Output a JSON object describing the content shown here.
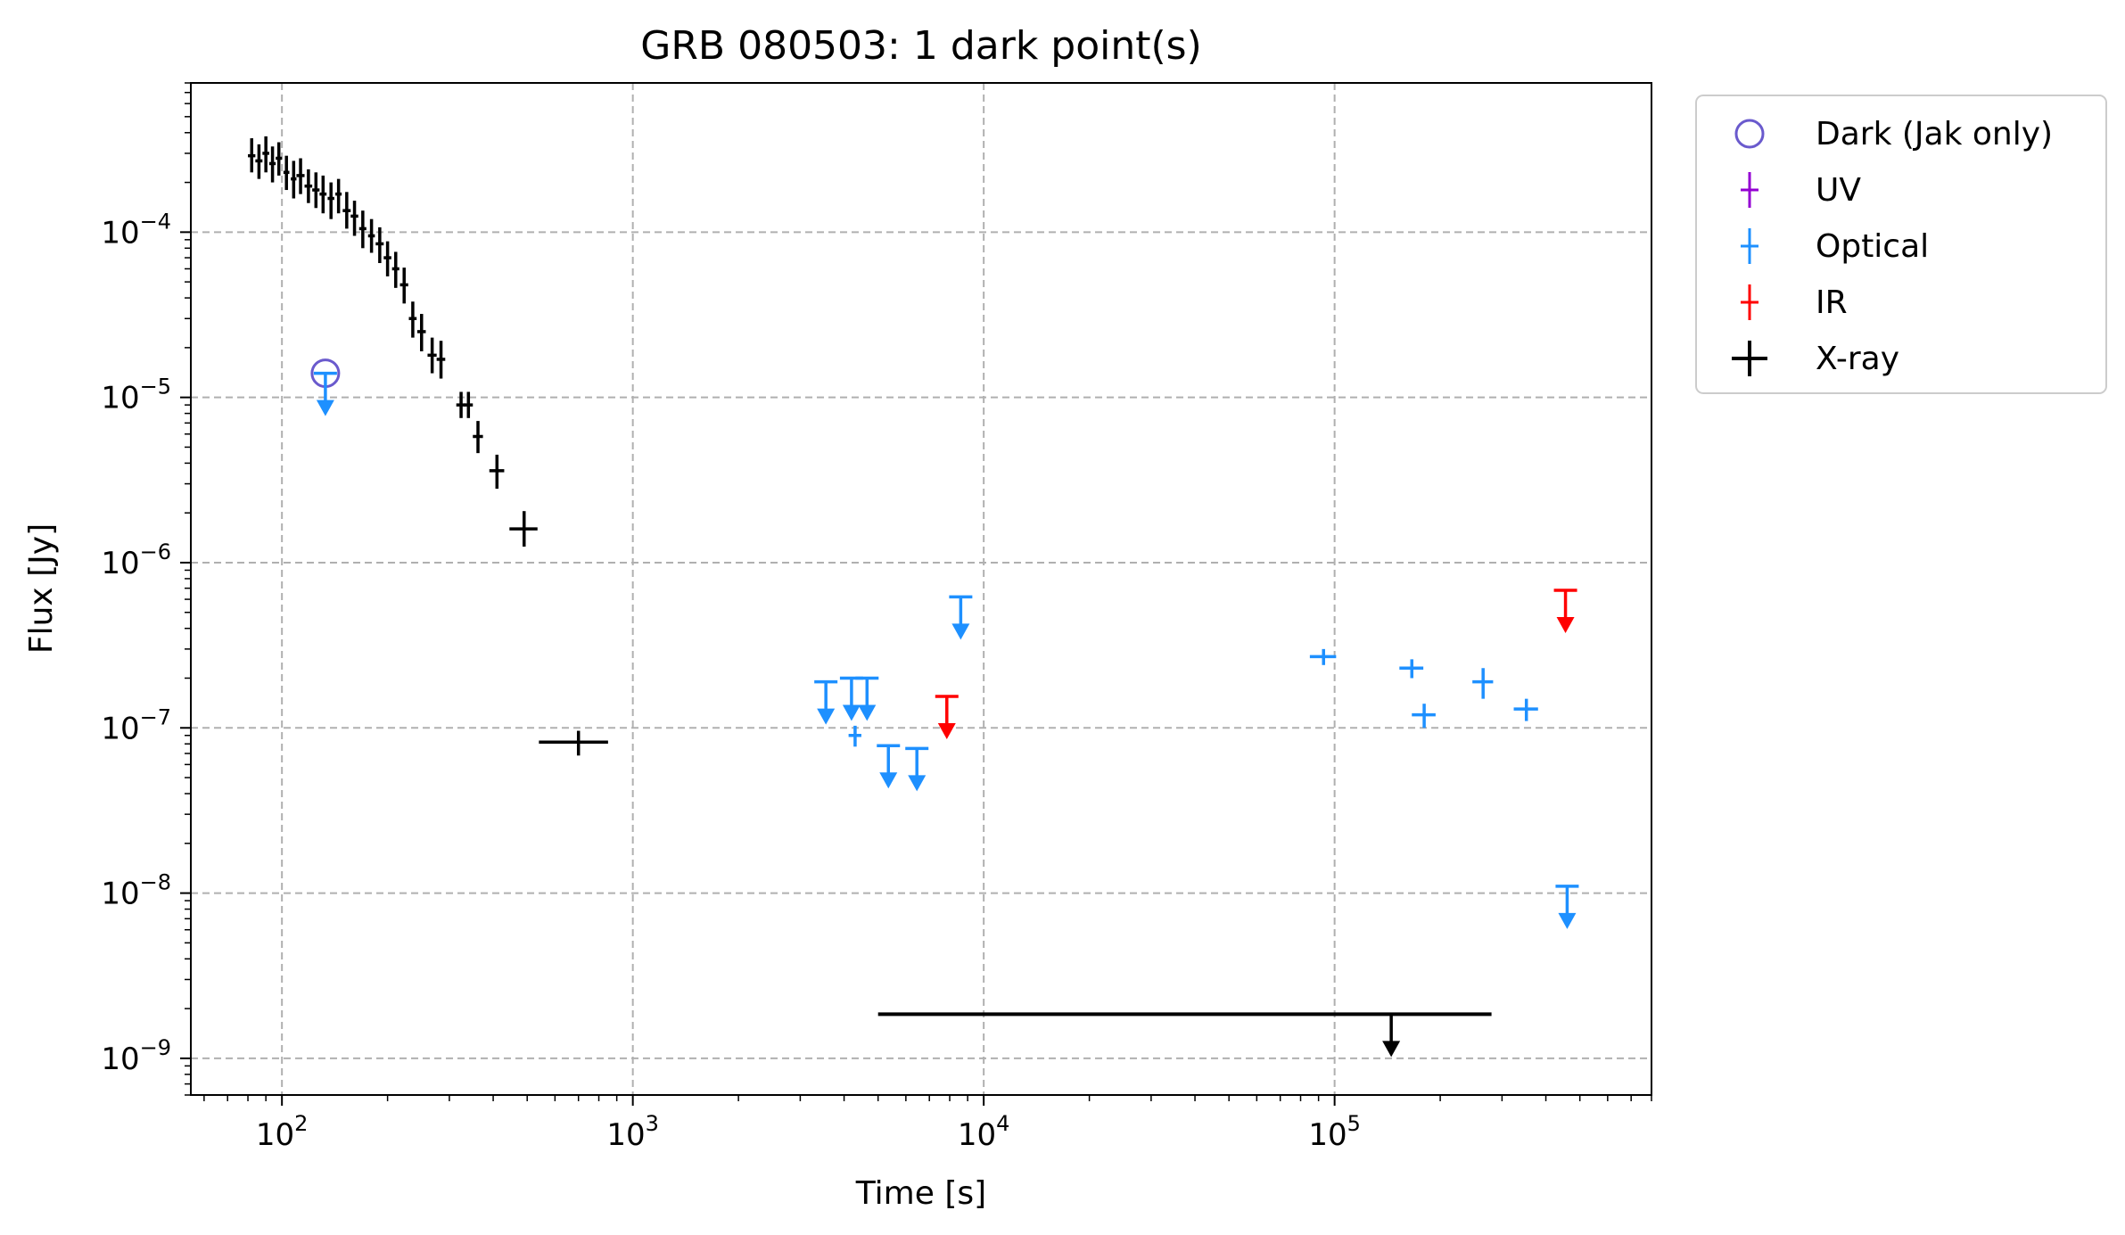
{
  "chart_data": {
    "type": "scatter",
    "title": "GRB 080503: 1 dark point(s)",
    "xlabel": "Time [s]",
    "ylabel": "Flux [Jy]",
    "xscale": "log",
    "yscale": "log",
    "xlim": [
      55,
      800000
    ],
    "ylim": [
      6e-10,
      0.0008
    ],
    "grid": true,
    "legend_position": "outside-upper-right",
    "x_ticks": [
      {
        "value": 100,
        "base": "10",
        "exp": "2"
      },
      {
        "value": 1000,
        "base": "10",
        "exp": "3"
      },
      {
        "value": 10000,
        "base": "10",
        "exp": "4"
      },
      {
        "value": 100000,
        "base": "10",
        "exp": "5"
      }
    ],
    "y_ticks": [
      {
        "value": 0.0001,
        "base": "10",
        "exp": "−4"
      },
      {
        "value": 1e-05,
        "base": "10",
        "exp": "−5"
      },
      {
        "value": 1e-06,
        "base": "10",
        "exp": "−6"
      },
      {
        "value": 1e-07,
        "base": "10",
        "exp": "−7"
      },
      {
        "value": 1e-08,
        "base": "10",
        "exp": "−8"
      },
      {
        "value": 1e-09,
        "base": "10",
        "exp": "−9"
      }
    ],
    "series": [
      {
        "name": "Dark (Jak only)",
        "color": "#6a5acd",
        "marker": "open-circle",
        "points": [
          {
            "x": 133,
            "y": 1.4e-05
          }
        ]
      },
      {
        "name": "UV",
        "color": "#9400d3",
        "marker": "cross",
        "points": []
      },
      {
        "name": "Optical",
        "color": "#1e90ff",
        "marker": "cross",
        "points": [
          {
            "x": 133,
            "y": 1.4e-05,
            "upper_limit": true
          },
          {
            "x": 3550,
            "y": 1.9e-07,
            "upper_limit": true
          },
          {
            "x": 4200,
            "y": 2e-07,
            "upper_limit": true
          },
          {
            "x": 4650,
            "y": 2e-07,
            "upper_limit": true
          },
          {
            "x": 5350,
            "y": 7.8e-08,
            "upper_limit": true
          },
          {
            "x": 6450,
            "y": 7.5e-08,
            "upper_limit": true
          },
          {
            "x": 8600,
            "y": 6.2e-07,
            "upper_limit": true
          },
          {
            "x": 460000,
            "y": 1.1e-08,
            "upper_limit": true
          },
          {
            "x": 4300,
            "y": 9e-08,
            "xerr": [
              180,
              180
            ],
            "yerr": [
              1.3e-08,
              1.3e-08
            ]
          },
          {
            "x": 93000,
            "y": 2.7e-07,
            "xerr": [
              8000,
              8000
            ],
            "yerr": [
              3e-08,
              3e-08
            ]
          },
          {
            "x": 166000,
            "y": 2.3e-07,
            "xerr": [
              13000,
              13000
            ],
            "yerr": [
              3e-08,
              3e-08
            ]
          },
          {
            "x": 180000,
            "y": 1.2e-07,
            "xerr": [
              14000,
              14000
            ],
            "yerr": [
              2e-08,
              2e-08
            ]
          },
          {
            "x": 265000,
            "y": 1.9e-07,
            "xerr": [
              18000,
              18000
            ],
            "yerr": [
              4e-08,
              4e-08
            ]
          },
          {
            "x": 352000,
            "y": 1.3e-07,
            "xerr": [
              28000,
              28000
            ],
            "yerr": [
              2e-08,
              2e-08
            ]
          }
        ]
      },
      {
        "name": "IR",
        "color": "#ff0000",
        "marker": "cross",
        "points": [
          {
            "x": 7850,
            "y": 1.55e-07,
            "upper_limit": true
          },
          {
            "x": 455000,
            "y": 6.8e-07,
            "upper_limit": true
          }
        ]
      },
      {
        "name": "X-ray",
        "color": "#000000",
        "marker": "cross",
        "points": [
          {
            "x": 82,
            "y": 0.00029,
            "xerr": [
              2,
              2
            ],
            "yerr": [
              6e-05,
              8e-05
            ]
          },
          {
            "x": 86,
            "y": 0.00027,
            "xerr": [
              2,
              2
            ],
            "yerr": [
              6e-05,
              7e-05
            ]
          },
          {
            "x": 90,
            "y": 0.0003,
            "xerr": [
              2,
              2
            ],
            "yerr": [
              7e-05,
              8e-05
            ]
          },
          {
            "x": 94,
            "y": 0.00026,
            "xerr": [
              2,
              2
            ],
            "yerr": [
              6e-05,
              7e-05
            ]
          },
          {
            "x": 98,
            "y": 0.00028,
            "xerr": [
              2,
              2
            ],
            "yerr": [
              6e-05,
              7e-05
            ]
          },
          {
            "x": 103,
            "y": 0.00023,
            "xerr": [
              2,
              2
            ],
            "yerr": [
              5e-05,
              6e-05
            ]
          },
          {
            "x": 108,
            "y": 0.00021,
            "xerr": [
              2,
              2
            ],
            "yerr": [
              5e-05,
              6e-05
            ]
          },
          {
            "x": 113,
            "y": 0.00022,
            "xerr": [
              3,
              3
            ],
            "yerr": [
              5e-05,
              6e-05
            ]
          },
          {
            "x": 119,
            "y": 0.00019,
            "xerr": [
              3,
              3
            ],
            "yerr": [
              4e-05,
              5e-05
            ]
          },
          {
            "x": 125,
            "y": 0.00018,
            "xerr": [
              3,
              3
            ],
            "yerr": [
              4e-05,
              5e-05
            ]
          },
          {
            "x": 131,
            "y": 0.00017,
            "xerr": [
              3,
              3
            ],
            "yerr": [
              4e-05,
              5e-05
            ]
          },
          {
            "x": 138,
            "y": 0.00016,
            "xerr": [
              3,
              3
            ],
            "yerr": [
              4e-05,
              4e-05
            ]
          },
          {
            "x": 145,
            "y": 0.00017,
            "xerr": [
              3,
              3
            ],
            "yerr": [
              4e-05,
              4e-05
            ]
          },
          {
            "x": 153,
            "y": 0.000135,
            "xerr": [
              4,
              4
            ],
            "yerr": [
              3e-05,
              4e-05
            ]
          },
          {
            "x": 161,
            "y": 0.000125,
            "xerr": [
              4,
              4
            ],
            "yerr": [
              3e-05,
              3e-05
            ]
          },
          {
            "x": 170,
            "y": 0.000105,
            "xerr": [
              4,
              4
            ],
            "yerr": [
              2.5e-05,
              3e-05
            ]
          },
          {
            "x": 180,
            "y": 9.5e-05,
            "xerr": [
              4,
              4
            ],
            "yerr": [
              2e-05,
              2.5e-05
            ]
          },
          {
            "x": 190,
            "y": 8.5e-05,
            "xerr": [
              5,
              5
            ],
            "yerr": [
              2e-05,
              2.2e-05
            ]
          },
          {
            "x": 200,
            "y": 7e-05,
            "xerr": [
              5,
              5
            ],
            "yerr": [
              1.6e-05,
              1.8e-05
            ]
          },
          {
            "x": 211,
            "y": 6e-05,
            "xerr": [
              5,
              5
            ],
            "yerr": [
              1.4e-05,
              1.6e-05
            ]
          },
          {
            "x": 223,
            "y": 4.8e-05,
            "xerr": [
              6,
              6
            ],
            "yerr": [
              1.1e-05,
              1.3e-05
            ]
          },
          {
            "x": 236,
            "y": 3e-05,
            "xerr": [
              6,
              6
            ],
            "yerr": [
              7e-06,
              8e-06
            ]
          },
          {
            "x": 250,
            "y": 2.5e-05,
            "xerr": [
              7,
              7
            ],
            "yerr": [
              6e-06,
              7e-06
            ]
          },
          {
            "x": 268,
            "y": 1.8e-05,
            "xerr": [
              8,
              8
            ],
            "yerr": [
              4e-06,
              5e-06
            ]
          },
          {
            "x": 284,
            "y": 1.7e-05,
            "xerr": [
              8,
              8
            ],
            "yerr": [
              4e-06,
              5e-06
            ]
          },
          {
            "x": 324,
            "y": 9e-06,
            "xerr": [
              10,
              10
            ],
            "yerr": [
              1.5e-06,
              1.8e-06
            ]
          },
          {
            "x": 340,
            "y": 9e-06,
            "xerr": [
              10,
              10
            ],
            "yerr": [
              1.5e-06,
              1.8e-06
            ]
          },
          {
            "x": 362,
            "y": 5.8e-06,
            "xerr": [
              12,
              12
            ],
            "yerr": [
              1.2e-06,
              1.4e-06
            ]
          },
          {
            "x": 410,
            "y": 3.6e-06,
            "xerr": [
              20,
              20
            ],
            "yerr": [
              8e-07,
              9e-07
            ]
          },
          {
            "x": 490,
            "y": 1.6e-06,
            "xerr": [
              45,
              45
            ],
            "yerr": [
              3.5e-07,
              4.5e-07
            ]
          },
          {
            "x": 700,
            "y": 8.2e-08,
            "xerr": [
              160,
              150
            ],
            "yerr": [
              1.4e-08,
              1.4e-08
            ]
          },
          {
            "x": 145000,
            "y": 1.85e-09,
            "xerr": [
              140000,
              135000
            ],
            "upper_limit": true
          }
        ]
      }
    ]
  }
}
